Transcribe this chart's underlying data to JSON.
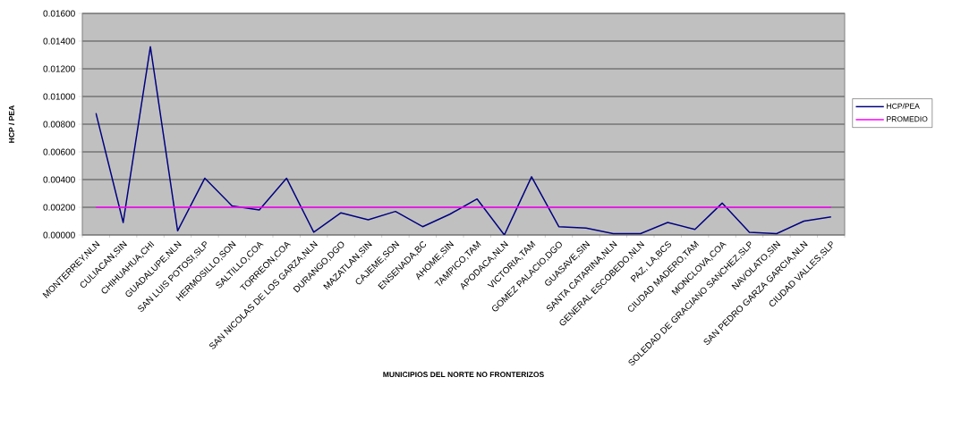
{
  "chart_data": {
    "type": "line",
    "xlabel": "MUNICIPIOS DEL NORTE NO FRONTERIZOS",
    "ylabel": "HCP / PEA",
    "categories": [
      "MONTERREY,NLN",
      "CULIACAN,SIN",
      "CHIHUAHUA,CHI",
      "GUADALUPE,NLN",
      "SAN LUIS POTOSI,SLP",
      "HERMOSILLO,SON",
      "SALTILLO,COA",
      "TORREON,COA",
      "SAN NICOLAS DE LOS GARZA,NLN",
      "DURANGO,DGO",
      "MAZATLAN,SIN",
      "CAJEME,SON",
      "ENSENADA,BC",
      "AHOME,SIN",
      "TAMPICO,TAM",
      "APODACA,NLN",
      "VICTORIA,TAM",
      "GOMEZ PALACIO,DGO",
      "GUASAVE,SIN",
      "SANTA CATARINA,NLN",
      "GENERAL ESCOBEDO,NLN",
      "PAZ, LA,BCS",
      "CIUDAD MADERO,TAM",
      "MONCLOVA,COA",
      "SOLEDAD DE GRACIANO SANCHEZ,SLP",
      "NAVOLATO,SIN",
      "SAN PEDRO GARZA GARCIA,NLN",
      "CIUDAD VALLES,SLP"
    ],
    "series": [
      {
        "name": "HCP/PEA",
        "color": "#000080",
        "values": [
          0.0088,
          0.0009,
          0.0136,
          0.0003,
          0.0041,
          0.0021,
          0.0018,
          0.0041,
          0.0002,
          0.0016,
          0.0011,
          0.0017,
          0.0006,
          0.0015,
          0.0026,
          0.0,
          0.0042,
          0.0006,
          0.0005,
          0.0001,
          0.0001,
          0.0009,
          0.0004,
          0.0023,
          0.0002,
          0.0001,
          0.001,
          0.0013
        ]
      },
      {
        "name": "PROMEDIO",
        "color": "#ff00ff",
        "values": [
          0.002,
          0.002,
          0.002,
          0.002,
          0.002,
          0.002,
          0.002,
          0.002,
          0.002,
          0.002,
          0.002,
          0.002,
          0.002,
          0.002,
          0.002,
          0.002,
          0.002,
          0.002,
          0.002,
          0.002,
          0.002,
          0.002,
          0.002,
          0.002,
          0.002,
          0.002,
          0.002,
          0.002
        ]
      }
    ],
    "ylim": [
      0,
      0.016
    ],
    "yticks": [
      {
        "value": 0,
        "label": "0.00000"
      },
      {
        "value": 0.002,
        "label": "0.00200"
      },
      {
        "value": 0.004,
        "label": "0.00400"
      },
      {
        "value": 0.006,
        "label": "0.00600"
      },
      {
        "value": 0.008,
        "label": "0.00800"
      },
      {
        "value": 0.01,
        "label": "0.01000"
      },
      {
        "value": 0.012,
        "label": "0.01200"
      },
      {
        "value": 0.014,
        "label": "0.01400"
      },
      {
        "value": 0.016,
        "label": "0.01600"
      }
    ],
    "grid": "y",
    "legend": "right",
    "marker": "none",
    "line_style": "solid"
  }
}
